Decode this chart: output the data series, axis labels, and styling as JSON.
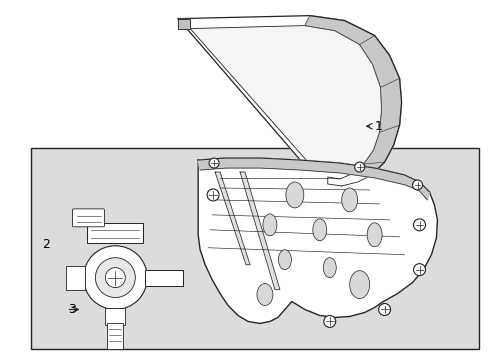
{
  "bg_color": "#ffffff",
  "box_bg": "#dcdcdc",
  "line_color": "#222222",
  "label_color": "#000000",
  "fig_width": 4.89,
  "fig_height": 3.6,
  "dpi": 100
}
